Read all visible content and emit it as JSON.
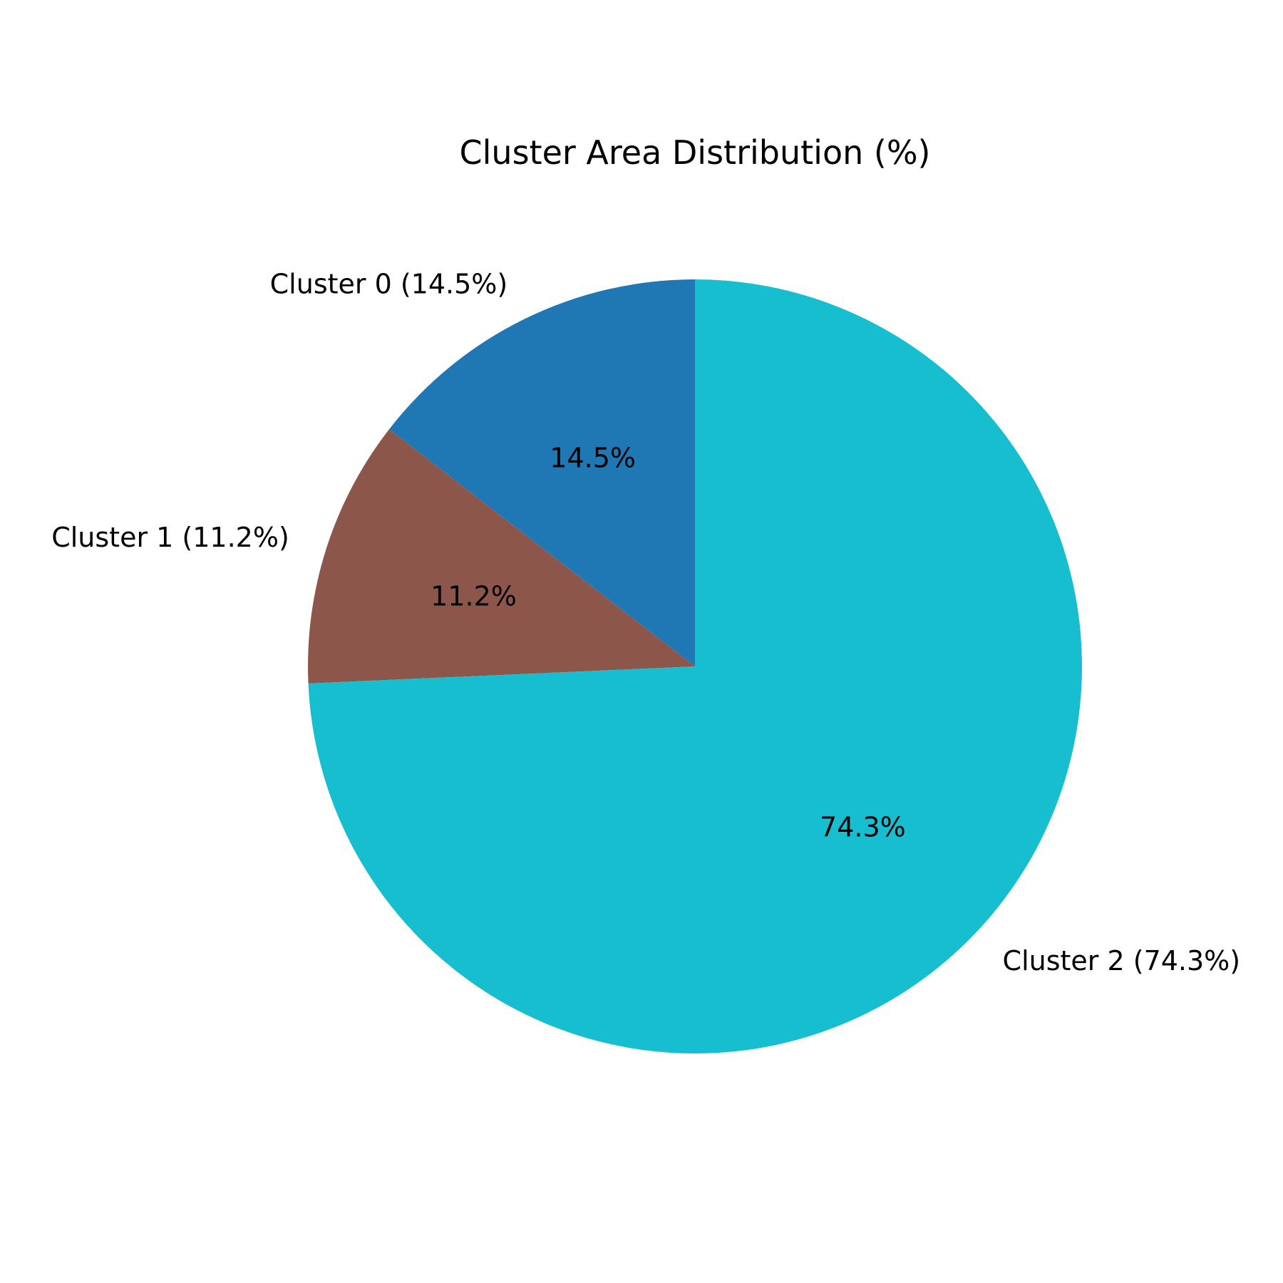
{
  "chart_data": {
    "type": "pie",
    "title": "Cluster Area Distribution (%)",
    "start_angle_deg": 90,
    "direction": "counterclockwise",
    "slices": [
      {
        "label": "Cluster 0 (14.5%)",
        "value": 14.5,
        "pct_label": "14.5%",
        "color": "#1f77b4"
      },
      {
        "label": "Cluster 1 (11.2%)",
        "value": 11.2,
        "pct_label": "11.2%",
        "color": "#8c564b"
      },
      {
        "label": "Cluster 2 (74.3%)",
        "value": 74.3,
        "pct_label": "74.3%",
        "color": "#17becf"
      }
    ]
  }
}
